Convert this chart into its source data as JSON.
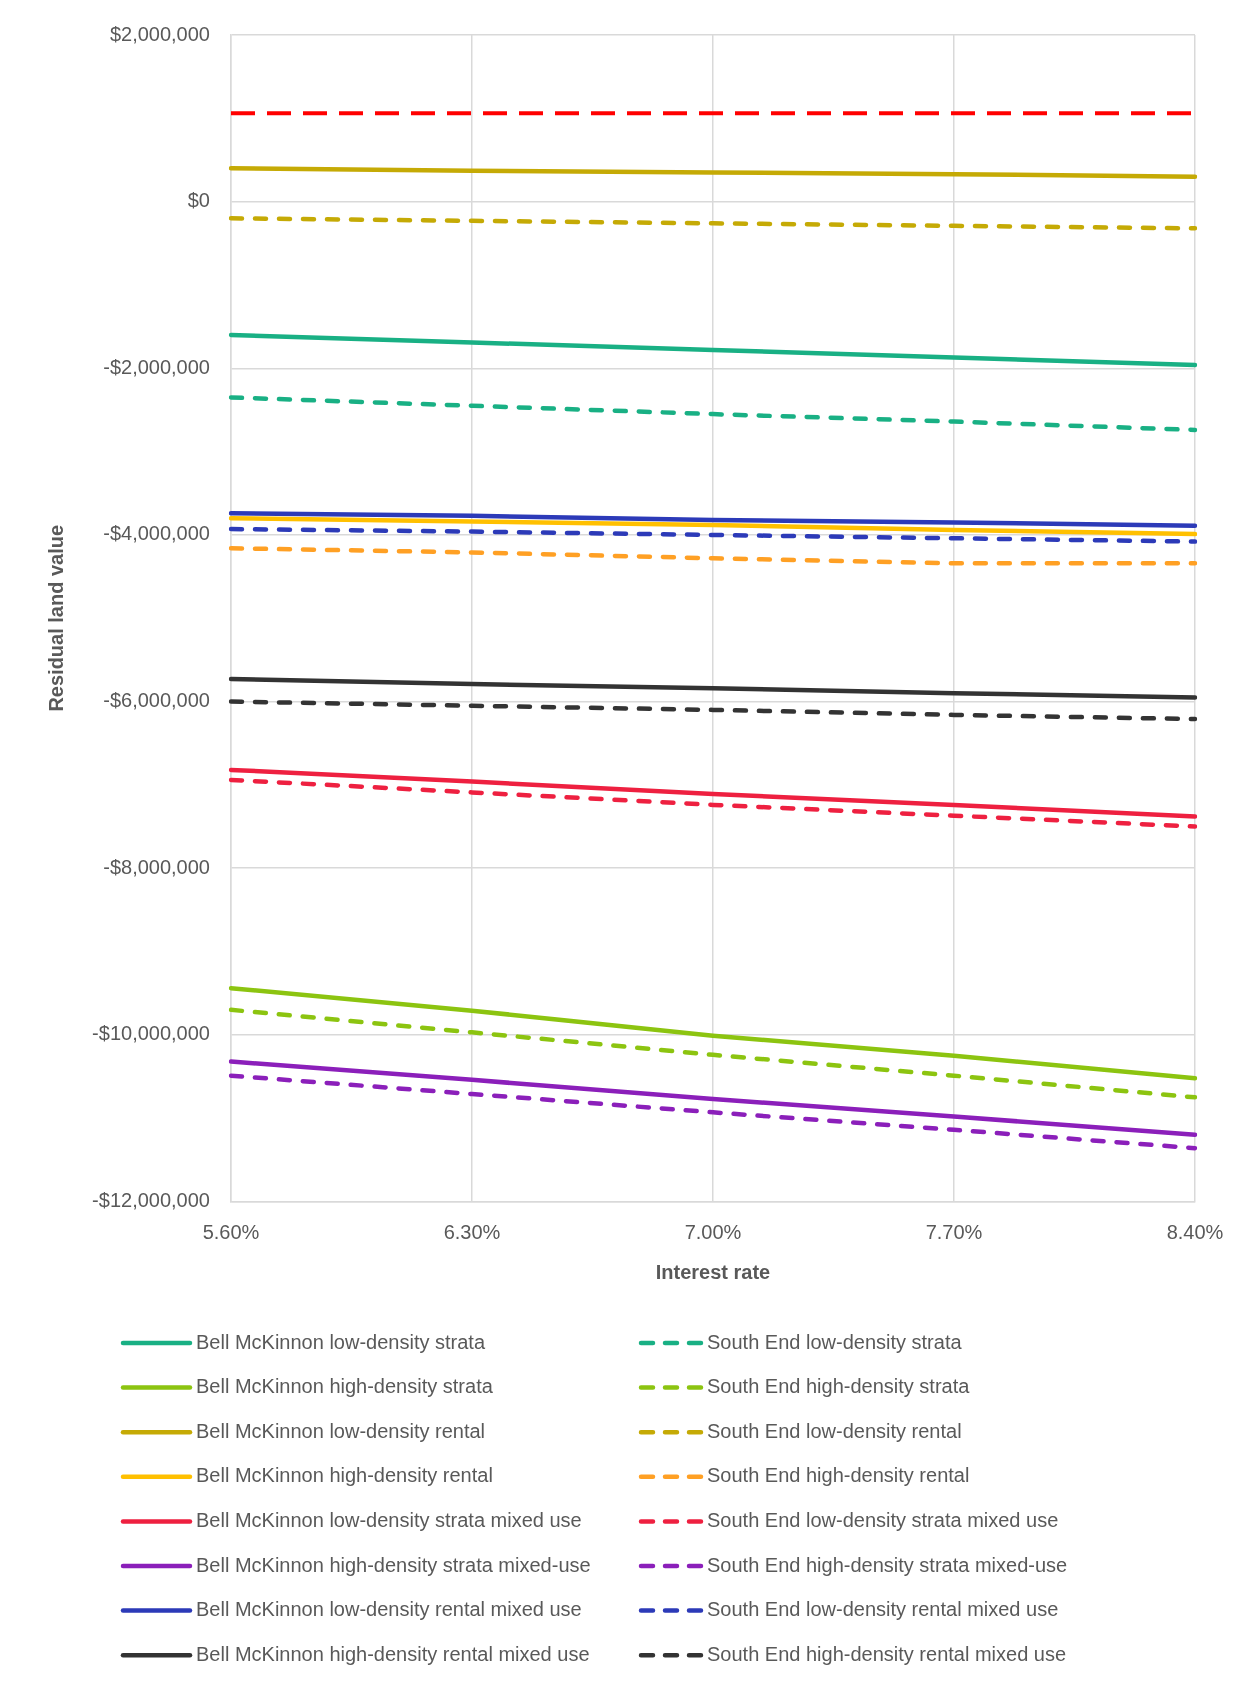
{
  "chart_data": {
    "type": "line",
    "xlabel": "Interest rate",
    "ylabel": "Residual land value",
    "categories": [
      "5.60%",
      "6.30%",
      "7.00%",
      "7.70%",
      "8.40%"
    ],
    "ylim": [
      -12000000,
      2000000
    ],
    "yticks": [
      {
        "value": -12000000,
        "label": "-$12,000,000"
      },
      {
        "value": -10000000,
        "label": "-$10,000,000"
      },
      {
        "value": -8000000,
        "label": "-$8,000,000"
      },
      {
        "value": -6000000,
        "label": "-$6,000,000"
      },
      {
        "value": -4000000,
        "label": "-$4,000,000"
      },
      {
        "value": -2000000,
        "label": "-$2,000,000"
      },
      {
        "value": 0,
        "label": "$0"
      },
      {
        "value": 2000000,
        "label": "$2,000,000"
      }
    ],
    "grid": true,
    "legend": "bottom",
    "marker": "none",
    "ref_lines": [
      {
        "axis": "y",
        "value": 1060000,
        "color": "#ff0000",
        "line_style": "dashed"
      }
    ],
    "series": [
      {
        "name": "Bell McKinnon low-density strata",
        "color": "#19b084",
        "line_style": "solid",
        "values": [
          -1600000,
          -1690000,
          -1780000,
          -1870000,
          -1960000
        ]
      },
      {
        "name": "South End low-density strata",
        "color": "#19b084",
        "line_style": "dashed",
        "values": [
          -2350000,
          -2450000,
          -2550000,
          -2640000,
          -2740000
        ]
      },
      {
        "name": "Bell McKinnon high-density strata",
        "color": "#8cc410",
        "line_style": "solid",
        "values": [
          -9440000,
          -9710000,
          -10010000,
          -10250000,
          -10520000
        ]
      },
      {
        "name": "South End high-density strata",
        "color": "#8cc410",
        "line_style": "dashed",
        "values": [
          -9700000,
          -9970000,
          -10240000,
          -10490000,
          -10750000
        ]
      },
      {
        "name": "Bell McKinnon low-density rental",
        "color": "#c5aa05",
        "line_style": "solid",
        "values": [
          400000,
          370000,
          350000,
          330000,
          300000
        ]
      },
      {
        "name": "South End low-density rental",
        "color": "#c5aa05",
        "line_style": "dashed",
        "values": [
          -200000,
          -230000,
          -260000,
          -290000,
          -320000
        ]
      },
      {
        "name": "Bell McKinnon high-density rental",
        "color": "#ffc000",
        "line_style": "solid",
        "values": [
          -3800000,
          -3840000,
          -3880000,
          -3940000,
          -3990000
        ]
      },
      {
        "name": "South End high-density rental",
        "color": "#ffa024",
        "line_style": "dashed",
        "values": [
          -4160000,
          -4210000,
          -4280000,
          -4340000,
          -4340000
        ]
      },
      {
        "name": "Bell McKinnon low-density strata mixed use",
        "color": "#ee2040",
        "line_style": "solid",
        "values": [
          -6820000,
          -6960000,
          -7110000,
          -7240000,
          -7380000
        ]
      },
      {
        "name": "South End low-density strata mixed use",
        "color": "#ee2040",
        "line_style": "dashed",
        "values": [
          -6940000,
          -7090000,
          -7240000,
          -7370000,
          -7500000
        ]
      },
      {
        "name": "Bell McKinnon high-density strata mixed-use",
        "color": "#8b1fba",
        "line_style": "solid",
        "values": [
          -10320000,
          -10540000,
          -10770000,
          -10980000,
          -11200000
        ]
      },
      {
        "name": "South End high-density strata mixed-use",
        "color": "#8b1fba",
        "line_style": "dashed",
        "values": [
          -10490000,
          -10710000,
          -10930000,
          -11140000,
          -11360000
        ]
      },
      {
        "name": "Bell McKinnon low-density rental mixed use",
        "color": "#2c3ab8",
        "line_style": "solid",
        "values": [
          -3740000,
          -3770000,
          -3820000,
          -3850000,
          -3890000
        ]
      },
      {
        "name": "South End low-density rental mixed use",
        "color": "#2c3ab8",
        "line_style": "dashed",
        "values": [
          -3930000,
          -3960000,
          -4000000,
          -4040000,
          -4080000
        ]
      },
      {
        "name": "Bell McKinnon high-density rental mixed use",
        "color": "#333333",
        "line_style": "solid",
        "values": [
          -5730000,
          -5790000,
          -5840000,
          -5900000,
          -5950000
        ]
      },
      {
        "name": "South End high-density rental mixed use",
        "color": "#333333",
        "line_style": "dashed",
        "values": [
          -6000000,
          -6050000,
          -6100000,
          -6160000,
          -6210000
        ]
      }
    ]
  }
}
